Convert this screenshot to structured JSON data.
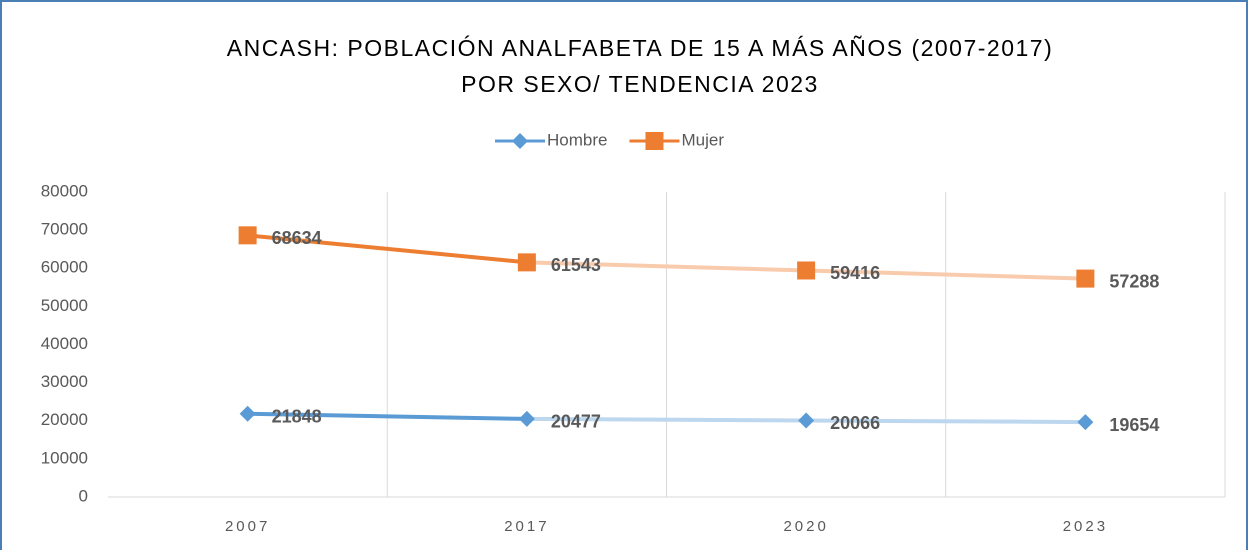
{
  "chart_data": {
    "type": "line",
    "title": "ANCASH: POBLACIÓN ANALFABETA DE 15 A MÁS AÑOS (2007-2017)",
    "subtitle": "POR SEXO/ TENDENCIA 2023",
    "categories": [
      "2007",
      "2017",
      "2020",
      "2023"
    ],
    "series": [
      {
        "name": "Hombre",
        "color": "#5b9bd5",
        "marker": "diamond",
        "values": [
          21848,
          20477,
          20066,
          19654
        ],
        "segment_colors": [
          "#5b9bd5",
          "#bdd7ee",
          "#bdd7ee"
        ]
      },
      {
        "name": "Mujer",
        "color": "#ed7d31",
        "marker": "square",
        "values": [
          68634,
          61543,
          59416,
          57288
        ],
        "segment_colors": [
          "#ed7d31",
          "#f8cbad",
          "#f8cbad"
        ]
      }
    ],
    "ylim": [
      0,
      80000
    ],
    "yticks": [
      0,
      10000,
      20000,
      30000,
      40000,
      50000,
      60000,
      70000,
      80000
    ],
    "legend": "top",
    "data_labels": true
  }
}
